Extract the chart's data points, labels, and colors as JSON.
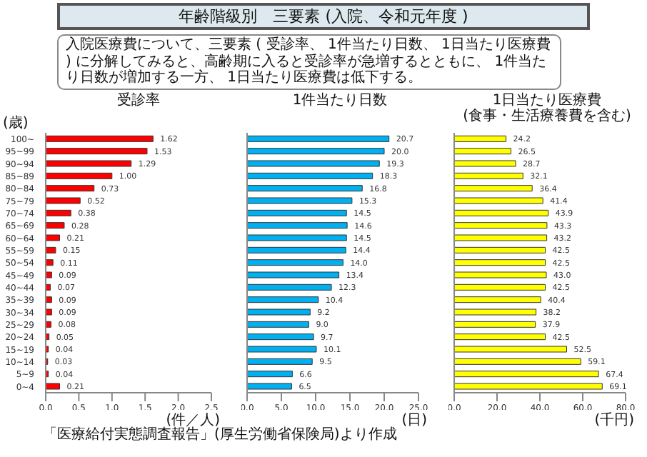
{
  "chart_data": [
    {
      "type": "bar",
      "orientation": "horizontal",
      "title": "受診率",
      "ylabel": "(歳)",
      "xlabel": "(件／人)",
      "color": "#ff0000",
      "annotations": [
        "年齢階級別　三要素 (入院、令和元年度 )",
        "入院医療費について、三要素 ( 受診率、 1件当たり日数、 1日当たり医療費 ) に分解してみると、高齢期に入ると受診率が急増するとともに、 1件当たり日数が増加する一方、 1日当たり医療費は低下する。",
        "「医療給付実態調査報告」(厚生労働省保険局)より作成"
      ],
      "categories": [
        "100~",
        "95~99",
        "90~94",
        "85~89",
        "80~84",
        "75~79",
        "70~74",
        "65~69",
        "60~64",
        "55~59",
        "50~54",
        "45~49",
        "40~44",
        "35~39",
        "30~34",
        "25~29",
        "20~24",
        "15~19",
        "10~14",
        "5~9",
        "0~4"
      ],
      "values": [
        1.62,
        1.53,
        1.29,
        1.0,
        0.73,
        0.52,
        0.38,
        0.28,
        0.21,
        0.15,
        0.11,
        0.09,
        0.07,
        0.09,
        0.09,
        0.08,
        0.05,
        0.04,
        0.03,
        0.04,
        0.21
      ],
      "value_labels": [
        "1.62",
        "1.53",
        "1.29",
        "1.00",
        "0.73",
        "0.52",
        "0.38",
        "0.28",
        "0.21",
        "0.15",
        "0.11",
        "0.09",
        "0.07",
        "0.09",
        "0.09",
        "0.08",
        "0.05",
        "0.04",
        "0.03",
        "0.04",
        "0.21"
      ],
      "xlim": [
        0,
        2.5
      ],
      "xticks": [
        {
          "value": 0,
          "label": "0.0"
        },
        {
          "value": 0.5,
          "label": "0.5"
        },
        {
          "value": 1,
          "label": "1.0"
        },
        {
          "value": 1.5,
          "label": "1.5"
        },
        {
          "value": 2,
          "label": "2.0"
        },
        {
          "value": 2.5,
          "label": "2.5"
        }
      ]
    },
    {
      "type": "bar",
      "orientation": "horizontal",
      "title": "1件当たり日数",
      "xlabel": "(日)",
      "color": "#00b0f0",
      "tick_labels": "x",
      "categories": [
        null,
        null,
        null,
        null,
        null,
        null,
        null,
        null,
        null,
        null,
        null,
        null,
        null,
        null,
        null,
        null,
        null,
        null,
        null,
        null,
        null
      ],
      "values": [
        20.7,
        20.0,
        19.3,
        18.3,
        16.8,
        15.3,
        14.5,
        14.6,
        14.5,
        14.4,
        14.0,
        13.4,
        12.3,
        10.4,
        9.2,
        9.0,
        9.7,
        10.1,
        9.5,
        6.6,
        6.5
      ],
      "value_labels": [
        "20.7",
        "20.0",
        "19.3",
        "18.3",
        "16.8",
        "15.3",
        "14.5",
        "14.6",
        "14.5",
        "14.4",
        "14.0",
        "13.4",
        "12.3",
        "10.4",
        "9.2",
        "9.0",
        "9.7",
        "10.1",
        "9.5",
        "6.6",
        "6.5"
      ],
      "xlim": [
        0,
        25
      ],
      "xticks": [
        {
          "value": 0,
          "label": "0.0"
        },
        {
          "value": 5,
          "label": "5.0"
        },
        {
          "value": 10,
          "label": "10.0"
        },
        {
          "value": 15,
          "label": "15.0"
        },
        {
          "value": 20,
          "label": "20.0"
        },
        {
          "value": 25,
          "label": "25.0"
        }
      ]
    },
    {
      "type": "bar",
      "orientation": "horizontal",
      "title": "1日当たり医療費",
      "subtitle": "(食事・生活療養費を含む)",
      "xlabel": "(千円)",
      "color": "#ffff00",
      "tick_labels": "x",
      "categories": [
        null,
        null,
        null,
        null,
        null,
        null,
        null,
        null,
        null,
        null,
        null,
        null,
        null,
        null,
        null,
        null,
        null,
        null,
        null,
        null,
        null
      ],
      "values": [
        24.2,
        26.5,
        28.7,
        32.1,
        36.4,
        41.4,
        43.9,
        43.3,
        43.2,
        42.5,
        42.5,
        43.0,
        42.5,
        40.4,
        38.2,
        37.9,
        42.5,
        52.5,
        59.1,
        67.4,
        69.1
      ],
      "value_labels": [
        "24.2",
        "26.5",
        "28.7",
        "32.1",
        "36.4",
        "41.4",
        "43.9",
        "43.3",
        "43.2",
        "42.5",
        "42.5",
        "43.0",
        "42.5",
        "40.4",
        "38.2",
        "37.9",
        "42.5",
        "52.5",
        "59.1",
        "67.4",
        "69.1"
      ],
      "xlim": [
        0,
        80
      ],
      "xticks": [
        {
          "value": 0,
          "label": "0.0"
        },
        {
          "value": 20,
          "label": "20.0"
        },
        {
          "value": 40,
          "label": "40.0"
        },
        {
          "value": 60,
          "label": "60.0"
        },
        {
          "value": 80,
          "label": "80.0"
        }
      ]
    }
  ]
}
